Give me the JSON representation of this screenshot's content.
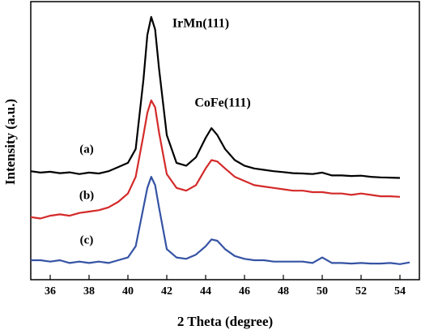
{
  "chart_data": {
    "type": "line",
    "x_label": "2 Theta (degree)",
    "y_label": "Intensity (a.u.)",
    "annotations": [
      "IrMn(111)",
      "CoFe(111)"
    ],
    "x": [
      35,
      35.5,
      36,
      36.5,
      37,
      37.5,
      38,
      38.5,
      39,
      39.5,
      40,
      40.4,
      40.8,
      41,
      41.2,
      41.4,
      41.6,
      42,
      42.5,
      43,
      43.5,
      44,
      44.3,
      44.6,
      45,
      45.5,
      46,
      46.5,
      47,
      47.5,
      48,
      48.5,
      49,
      49.5,
      50,
      50.5,
      51,
      51.5,
      52,
      52.5,
      53,
      53.5,
      54,
      54.5
    ],
    "series": [
      {
        "name": "(a)",
        "color": "#000000",
        "values": [
          39,
          38.5,
          38.8,
          38.3,
          38.6,
          38,
          38.5,
          38.2,
          39,
          40.5,
          42,
          47,
          72,
          88,
          94.5,
          90,
          76,
          52,
          42,
          41,
          44,
          51,
          54.5,
          52,
          47,
          43,
          41,
          40,
          39.5,
          39,
          38.7,
          38.3,
          38.2,
          38,
          38.5,
          37.5,
          37.5,
          37.3,
          37.4,
          37,
          36.8,
          36.7,
          36.6,
          null
        ]
      },
      {
        "name": "(b)",
        "color": "#d42a2a",
        "values": [
          22.5,
          22,
          23,
          23.5,
          23,
          24,
          24.5,
          25,
          26,
          28,
          31,
          37,
          52,
          60,
          64.5,
          62,
          53,
          38,
          33,
          32,
          34,
          40,
          43,
          42.5,
          40,
          37,
          35.5,
          34,
          33.5,
          33,
          32.5,
          32,
          32,
          31.5,
          31.5,
          31,
          31,
          30.5,
          31,
          30.5,
          30,
          30,
          29.8,
          null
        ]
      },
      {
        "name": "(c)",
        "color": "#3553a4",
        "values": [
          7,
          7,
          6.5,
          7,
          6,
          6.5,
          6,
          6.5,
          6,
          7,
          8,
          12,
          26,
          33,
          37,
          34,
          26,
          11,
          8,
          7.5,
          9,
          12,
          14.5,
          14,
          11,
          8.5,
          7.5,
          7,
          7,
          6.5,
          6.5,
          6.5,
          6.5,
          6,
          8,
          6,
          6,
          5.8,
          6,
          5.8,
          5.8,
          6,
          5.6,
          6.2
        ]
      }
    ],
    "xlim": [
      35,
      55
    ],
    "xticks": [
      36,
      38,
      40,
      42,
      44,
      46,
      48,
      50,
      52,
      54
    ],
    "ylim": [
      0,
      100
    ],
    "grid": false
  }
}
